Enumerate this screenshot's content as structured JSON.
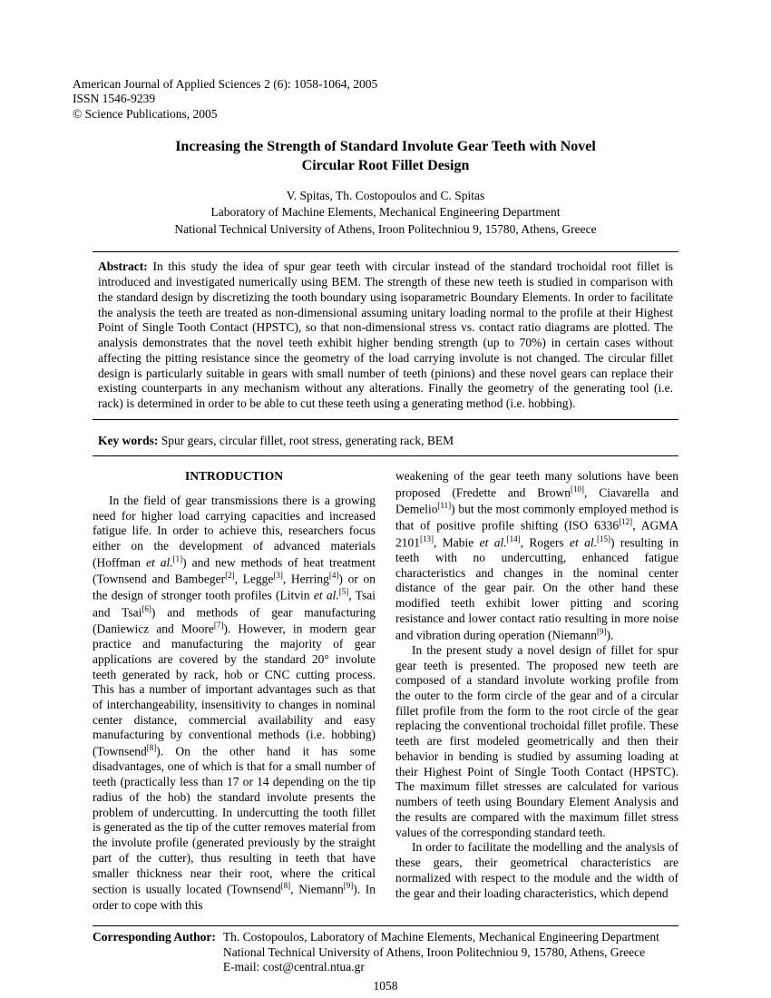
{
  "journal": {
    "line1": "American Journal of Applied Sciences 2 (6): 1058-1064, 2005",
    "line2": "ISSN 1546-9239",
    "line3": "© Science Publications, 2005"
  },
  "title": "Increasing the Strength of Standard Involute Gear Teeth with Novel Circular Root Fillet Design",
  "authors": "V. Spitas,  Th. Costopoulos and C. Spitas",
  "affiliation1": "Laboratory of Machine Elements, Mechanical Engineering Department",
  "affiliation2": "National Technical University of Athens,  Iroon Politechniou 9, 15780, Athens, Greece",
  "abstract_label": "Abstract:",
  "abstract": "In this study the idea of spur gear teeth with circular instead of the standard trochoidal root fillet is introduced and investigated numerically using BEM. The strength of these new teeth is studied in comparison with the standard design by discretizing the tooth boundary using isoparametric Boundary Elements. In order to facilitate the analysis the teeth are treated as non-dimensional assuming unitary loading normal to the profile at their Highest Point of Single Tooth Contact (HPSTC), so that non-dimensional stress vs. contact ratio diagrams are plotted. The analysis demonstrates that the novel teeth exhibit higher bending strength (up to 70%) in certain cases without affecting the pitting resistance since the geometry of the load carrying involute is not changed. The circular fillet design is particularly suitable in gears with small number of teeth (pinions) and these novel gears can replace their existing counterparts in any mechanism without any alterations. Finally the geometry of the generating tool (i.e. rack) is determined in order to be able to cut these teeth using a generating method (i.e. hobbing).",
  "keywords_label": "Key words:",
  "keywords": "Spur gears, circular fillet, root stress, generating rack, BEM",
  "intro_heading": "INTRODUCTION",
  "footer": {
    "label": "Corresponding Author:",
    "line1": "Th. Costopoulos, Laboratory of Machine Elements, Mechanical Engineering Department",
    "line2": "National Technical University of Athens, Iroon Politechniou 9, 15780, Athens, Greece",
    "line3": "E-mail: cost@central.ntua.gr"
  },
  "page_number": "1058"
}
